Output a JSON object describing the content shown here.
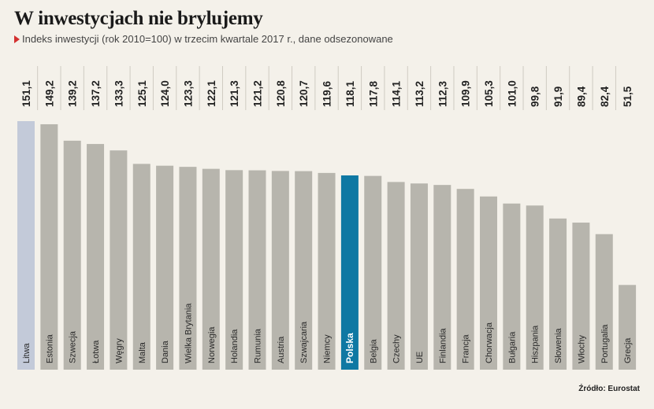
{
  "title": "W inwestycjach nie brylujemy",
  "subtitle": "Indeks inwestycji (rok 2010=100) w trzecim kwartale 2017 r., dane odsezonowane",
  "source": "Źródło: Eurostat",
  "colors": {
    "default_bar": "#b7b5ad",
    "highlight_litwa": "#c3cad9",
    "highlight_polska": "#0f78a3",
    "background": "#f4f1ea"
  },
  "chart_data": {
    "type": "bar",
    "title": "W inwestycjach nie brylujemy",
    "subtitle": "Indeks inwestycji (rok 2010=100) w trzecim kwartale 2017 r., dane odsezonowane",
    "xlabel": "",
    "ylabel": "",
    "ylim": [
      0,
      160
    ],
    "grid": false,
    "categories": [
      "Litwa",
      "Estonia",
      "Szwecja",
      "Łotwa",
      "Węgry",
      "Malta",
      "Dania",
      "Wielka Brytania",
      "Norwegia",
      "Holandia",
      "Rumunia",
      "Austria",
      "Szwajcaria",
      "Niemcy",
      "Polska",
      "Belgia",
      "Czechy",
      "UE",
      "Finlandia",
      "Francja",
      "Chorwacja",
      "Bułgaria",
      "Hiszpania",
      "Słowenia",
      "Włochy",
      "Portugalia",
      "Grecja"
    ],
    "values": [
      151.1,
      149.2,
      139.2,
      137.2,
      133.3,
      125.1,
      124.0,
      123.3,
      122.1,
      121.3,
      121.2,
      120.8,
      120.7,
      119.6,
      118.1,
      117.8,
      114.1,
      113.2,
      112.3,
      109.9,
      105.3,
      101.0,
      99.8,
      91.9,
      89.4,
      82.4,
      51.5
    ],
    "value_labels": [
      "151,1",
      "149,2",
      "139,2",
      "137,2",
      "133,3",
      "125,1",
      "124,0",
      "123,3",
      "122,1",
      "121,3",
      "121,2",
      "120,8",
      "120,7",
      "119,6",
      "118,1",
      "117,8",
      "114,1",
      "113,2",
      "112,3",
      "109,9",
      "105,3",
      "101,0",
      "99,8",
      "91,9",
      "89,4",
      "82,4",
      "51,5"
    ],
    "highlights": {
      "Litwa": "highlight_litwa",
      "Polska": "highlight_polska"
    }
  }
}
